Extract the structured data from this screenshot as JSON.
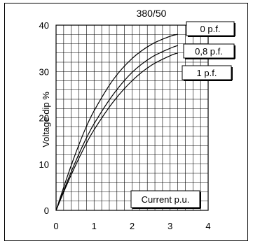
{
  "chart_data": {
    "type": "line",
    "title": "380/50",
    "xlabel": "Current p.u.",
    "ylabel": "Voltage dip %",
    "xlim": [
      0,
      4
    ],
    "ylim": [
      0,
      40
    ],
    "x_ticks": [
      0,
      1,
      2,
      3,
      4
    ],
    "y_ticks": [
      0,
      10,
      20,
      30,
      40
    ],
    "grid": true,
    "series": [
      {
        "name": "0 p.f.",
        "x": [
          0,
          0.25,
          0.5,
          0.75,
          1.0,
          1.5,
          2.0,
          2.5,
          3.0,
          3.2
        ],
        "y": [
          0,
          6.2,
          12.0,
          17.2,
          21.5,
          28.2,
          32.8,
          35.8,
          37.6,
          38.0
        ]
      },
      {
        "name": "0,8 p.f.",
        "x": [
          0,
          0.25,
          0.5,
          0.75,
          1.0,
          1.5,
          2.0,
          2.5,
          3.0,
          3.2
        ],
        "y": [
          0,
          5.3,
          10.3,
          14.8,
          18.7,
          25.0,
          29.8,
          33.0,
          35.0,
          35.6
        ]
      },
      {
        "name": "1 p.f.",
        "x": [
          0,
          0.25,
          0.5,
          0.75,
          1.0,
          1.5,
          2.0,
          2.5,
          3.0,
          3.2
        ],
        "y": [
          0,
          4.9,
          9.5,
          13.7,
          17.4,
          23.4,
          28.0,
          31.3,
          33.4,
          34.0
        ]
      }
    ]
  }
}
